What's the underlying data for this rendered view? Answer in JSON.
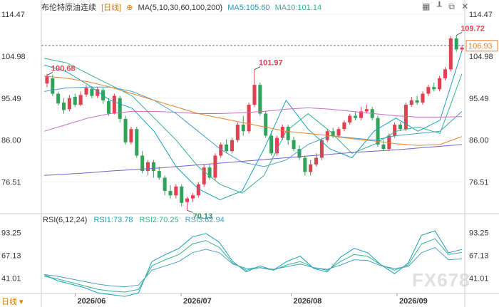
{
  "header": {
    "title": "布伦特原油连续",
    "period": "[日线]",
    "ma_label": "MA(5,10,30,60,100,200)",
    "ma5_label": "MA5:105.60",
    "ma10_label": "MA10:101.14"
  },
  "rsi_header": {
    "label": "RSI(6,12,24)",
    "rsi1": "RSI1:73.78",
    "rsi2": "RSI2:70.25",
    "rsi3": "RSI3:62.94"
  },
  "footer": {
    "period_button": "日线 ▾"
  },
  "watermark": "FX678",
  "colors": {
    "up": "#e04050",
    "down": "#2fa35a",
    "ma5": "#1b9fbf",
    "ma10": "#35b38a",
    "ma30": "#4aa0c8",
    "ma60": "#c86cc8",
    "ma100": "#e8822a",
    "ma200": "#7a60c8",
    "rsi1": "#1b9fbf",
    "rsi2": "#35b38a",
    "rsi3": "#4aa0c8",
    "last_price": "#e8822a"
  },
  "chart_data": [
    {
      "type": "candlestick",
      "ylim": [
        70.0,
        114.47
      ],
      "y_ticks": [
        "114.47",
        "104.98",
        "95.49",
        "86.00",
        "76.51"
      ],
      "x_ticks": [
        "2026/06",
        "2026/07",
        "2026/08",
        "2026/09"
      ],
      "last_price": "106.93",
      "annotations": [
        {
          "label": "100.68",
          "candle": 0
        },
        {
          "label": "101.97",
          "candle": 37
        },
        {
          "label": "70.13",
          "candle": 25
        },
        {
          "label": "109.72",
          "candle": 73
        }
      ],
      "candles": [
        [
          98.8,
          100.4,
          101.0,
          98.0
        ],
        [
          100.0,
          96.5,
          100.8,
          96.0
        ],
        [
          96.5,
          94.3,
          97.0,
          93.8
        ],
        [
          94.5,
          92.8,
          95.5,
          92.0
        ],
        [
          93.0,
          95.5,
          96.2,
          92.5
        ],
        [
          95.8,
          94.0,
          96.5,
          93.5
        ],
        [
          94.0,
          96.2,
          97.0,
          93.7
        ],
        [
          96.3,
          97.8,
          98.5,
          95.8
        ],
        [
          97.6,
          96.0,
          98.2,
          95.5
        ],
        [
          96.0,
          97.5,
          98.0,
          95.5
        ],
        [
          97.3,
          95.0,
          97.8,
          94.2
        ],
        [
          94.8,
          92.0,
          95.5,
          91.5
        ],
        [
          92.0,
          96.0,
          96.5,
          91.8
        ],
        [
          95.5,
          90.8,
          96.0,
          90.0
        ],
        [
          90.8,
          85.5,
          91.5,
          85.0
        ],
        [
          85.5,
          88.5,
          89.0,
          85.0
        ],
        [
          88.5,
          82.5,
          89.0,
          82.0
        ],
        [
          82.5,
          79.0,
          83.5,
          78.5
        ],
        [
          79.0,
          81.0,
          81.5,
          78.0
        ],
        [
          81.0,
          79.0,
          81.5,
          77.5
        ],
        [
          79.0,
          77.5,
          80.0,
          77.0
        ],
        [
          77.5,
          74.5,
          78.0,
          73.5
        ],
        [
          74.5,
          73.5,
          75.8,
          72.8
        ],
        [
          73.5,
          75.5,
          76.0,
          72.8
        ],
        [
          75.5,
          71.8,
          76.0,
          71.0
        ],
        [
          72.0,
          72.8,
          73.2,
          70.13
        ],
        [
          72.8,
          73.5,
          74.0,
          72.0
        ],
        [
          73.5,
          76.0,
          76.5,
          73.0
        ],
        [
          76.0,
          79.8,
          80.5,
          75.5
        ],
        [
          79.8,
          77.5,
          80.5,
          77.0
        ],
        [
          77.5,
          82.5,
          83.0,
          77.0
        ],
        [
          82.5,
          85.0,
          85.5,
          82.0
        ],
        [
          85.0,
          83.5,
          86.2,
          83.0
        ],
        [
          83.5,
          86.0,
          86.5,
          83.0
        ],
        [
          86.0,
          89.5,
          90.0,
          85.5
        ],
        [
          89.5,
          88.0,
          91.5,
          87.0
        ],
        [
          88.0,
          94.0,
          94.5,
          87.5
        ],
        [
          94.0,
          98.5,
          101.97,
          93.5
        ],
        [
          98.5,
          92.0,
          99.0,
          91.5
        ],
        [
          92.0,
          87.0,
          92.5,
          86.5
        ],
        [
          87.0,
          83.0,
          88.0,
          82.5
        ],
        [
          83.0,
          86.5,
          87.0,
          82.5
        ],
        [
          86.5,
          89.0,
          89.5,
          86.0
        ],
        [
          89.0,
          86.0,
          89.5,
          85.0
        ],
        [
          86.0,
          84.0,
          86.8,
          83.5
        ],
        [
          84.0,
          82.0,
          84.8,
          81.5
        ],
        [
          82.0,
          78.8,
          82.5,
          78.0
        ],
        [
          78.8,
          80.5,
          81.5,
          78.0
        ],
        [
          80.5,
          82.0,
          83.0,
          80.0
        ],
        [
          82.0,
          86.0,
          86.5,
          81.5
        ],
        [
          86.0,
          88.0,
          88.5,
          85.5
        ],
        [
          88.0,
          87.0,
          88.8,
          86.5
        ],
        [
          87.0,
          88.5,
          89.0,
          86.5
        ],
        [
          88.5,
          90.0,
          90.5,
          88.0
        ],
        [
          90.0,
          91.5,
          92.0,
          89.5
        ],
        [
          91.5,
          91.0,
          92.5,
          90.5
        ],
        [
          91.0,
          92.5,
          93.5,
          90.5
        ],
        [
          92.5,
          93.0,
          94.0,
          92.0
        ],
        [
          93.0,
          91.0,
          93.5,
          90.5
        ],
        [
          91.0,
          85.0,
          91.5,
          84.5
        ],
        [
          85.0,
          84.0,
          86.0,
          83.5
        ],
        [
          84.0,
          87.0,
          87.5,
          83.5
        ],
        [
          87.0,
          89.5,
          90.0,
          86.5
        ],
        [
          89.5,
          88.5,
          90.0,
          88.0
        ],
        [
          88.5,
          94.0,
          94.5,
          88.0
        ],
        [
          94.0,
          95.0,
          95.8,
          93.5
        ],
        [
          95.0,
          94.5,
          96.0,
          94.0
        ],
        [
          94.5,
          96.5,
          97.0,
          94.0
        ],
        [
          96.5,
          98.0,
          98.5,
          96.0
        ],
        [
          98.0,
          97.5,
          99.0,
          97.0
        ],
        [
          97.5,
          100.0,
          100.5,
          97.0
        ],
        [
          100.0,
          102.0,
          102.5,
          99.5
        ],
        [
          102.0,
          109.0,
          109.5,
          101.5
        ],
        [
          109.0,
          106.5,
          109.72,
          106.0
        ],
        [
          106.5,
          106.93,
          107.5,
          106.0
        ]
      ],
      "ma_series": [
        {
          "name": "MA5",
          "values": [
            103.0,
            101.5,
            98.5,
            95.0,
            93.2,
            88.0,
            80.0,
            75.0,
            72.5,
            74.5,
            84.0,
            95.0,
            88.5,
            84.0,
            82.0,
            88.0,
            91.0,
            88.0,
            90.5,
            106.2
          ]
        },
        {
          "name": "MA10",
          "values": [
            104.5,
            103.5,
            101.0,
            98.5,
            96.0,
            91.0,
            86.0,
            80.0,
            76.0,
            74.0,
            78.0,
            88.0,
            92.0,
            88.0,
            83.0,
            85.0,
            88.0,
            89.0,
            87.5,
            101.0
          ]
        },
        {
          "name": "MA30",
          "values": [
            97.0,
            97.8,
            98.0,
            98.0,
            97.0,
            95.0,
            92.0,
            88.0,
            84.0,
            81.0,
            80.0,
            81.5,
            85.0,
            87.0,
            86.5,
            86.0,
            87.0,
            87.5,
            88.0,
            92.5
          ]
        },
        {
          "name": "MA60",
          "values": [
            88.0,
            89.5,
            91.0,
            92.0,
            92.5,
            92.5,
            92.3,
            92.0,
            92.0,
            92.2,
            92.5,
            93.0,
            93.3,
            93.0,
            92.5,
            92.0,
            91.5,
            91.2,
            91.2,
            91.3
          ]
        },
        {
          "name": "MA100",
          "values": [
            100.5,
            100.0,
            99.2,
            98.0,
            96.5,
            95.0,
            93.5,
            92.0,
            91.0,
            90.0,
            89.0,
            88.0,
            87.5,
            87.0,
            86.3,
            85.8,
            85.2,
            84.8,
            85.0,
            86.8
          ]
        },
        {
          "name": "MA200",
          "values": [
            78.0,
            78.3,
            78.6,
            79.0,
            79.3,
            79.6,
            80.0,
            80.4,
            80.8,
            81.2,
            81.6,
            82.0,
            82.4,
            82.8,
            83.2,
            83.5,
            83.8,
            84.2,
            84.6,
            85.0
          ]
        }
      ]
    },
    {
      "type": "line",
      "ylim": [
        25,
        100
      ],
      "y_ticks": [
        "93.25",
        "67.13",
        "41.01"
      ],
      "series": [
        {
          "name": "RSI1",
          "values": [
            45,
            38,
            34,
            30,
            24,
            22,
            20,
            24,
            60,
            68,
            75,
            88,
            92,
            82,
            60,
            48,
            55,
            50,
            60,
            66,
            52,
            48,
            65,
            75,
            70,
            56,
            46,
            58,
            90,
            95,
            70,
            73.78
          ]
        },
        {
          "name": "RSI2",
          "values": [
            43,
            40,
            36,
            32,
            28,
            26,
            25,
            28,
            55,
            62,
            68,
            80,
            84,
            76,
            58,
            50,
            53,
            50,
            56,
            60,
            53,
            50,
            60,
            68,
            66,
            56,
            50,
            56,
            80,
            86,
            68,
            70.25
          ]
        },
        {
          "name": "RSI3",
          "values": [
            45,
            43,
            40,
            37,
            34,
            32,
            31,
            33,
            50,
            55,
            60,
            70,
            74,
            70,
            57,
            52,
            53,
            51,
            54,
            57,
            53,
            51,
            56,
            62,
            61,
            55,
            52,
            54,
            70,
            76,
            62,
            62.94
          ]
        }
      ]
    }
  ]
}
